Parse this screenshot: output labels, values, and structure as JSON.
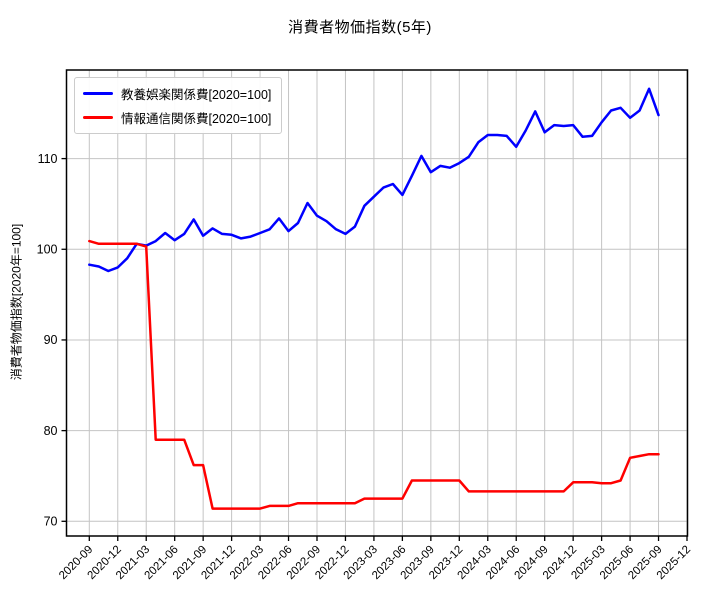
{
  "page": {
    "title": "消費者物価指数(5年)"
  },
  "chart_data": {
    "type": "line",
    "title": "消費者物価指数(5年)",
    "xlabel": "",
    "ylabel": "消費者物価指数[2020年=100]",
    "grid": true,
    "legend_position": "upper-left",
    "y_ticks": [
      70,
      80,
      90,
      100,
      110
    ],
    "ylim": [
      68.4,
      119.8
    ],
    "x_tick_labels": [
      "2020-09",
      "2020-12",
      "2021-03",
      "2021-06",
      "2021-09",
      "2021-12",
      "2022-03",
      "2022-06",
      "2022-09",
      "2022-12",
      "2023-03",
      "2023-06",
      "2023-09",
      "2023-12",
      "2024-03",
      "2024-06",
      "2024-09",
      "2024-12",
      "2025-03",
      "2025-06",
      "2025-09",
      "2025-12"
    ],
    "x": [
      "2020-09",
      "2020-10",
      "2020-11",
      "2020-12",
      "2021-01",
      "2021-02",
      "2021-03",
      "2021-04",
      "2021-05",
      "2021-06",
      "2021-07",
      "2021-08",
      "2021-09",
      "2021-10",
      "2021-11",
      "2021-12",
      "2022-01",
      "2022-02",
      "2022-03",
      "2022-04",
      "2022-05",
      "2022-06",
      "2022-07",
      "2022-08",
      "2022-09",
      "2022-10",
      "2022-11",
      "2022-12",
      "2023-01",
      "2023-02",
      "2023-03",
      "2023-04",
      "2023-05",
      "2023-06",
      "2023-07",
      "2023-08",
      "2023-09",
      "2023-10",
      "2023-11",
      "2023-12",
      "2024-01",
      "2024-02",
      "2024-03",
      "2024-04",
      "2024-05",
      "2024-06",
      "2024-07",
      "2024-08",
      "2024-09",
      "2024-10",
      "2024-11",
      "2024-12",
      "2025-01",
      "2025-02",
      "2025-03",
      "2025-04",
      "2025-05",
      "2025-06",
      "2025-07",
      "2025-08",
      "2025-09"
    ],
    "series": [
      {
        "name": "教養娯楽関係費[2020=100]",
        "color": "#0000ff",
        "values": [
          98.3,
          98.1,
          97.6,
          98.0,
          99.0,
          100.6,
          100.4,
          100.9,
          101.8,
          101.0,
          101.7,
          103.3,
          101.5,
          102.3,
          101.7,
          101.6,
          101.2,
          101.4,
          101.8,
          102.2,
          103.4,
          102.0,
          102.9,
          105.1,
          103.7,
          103.1,
          102.2,
          101.7,
          102.5,
          104.8,
          105.8,
          106.8,
          107.2,
          106.0,
          108.1,
          110.3,
          108.5,
          109.2,
          109.0,
          109.5,
          110.2,
          111.8,
          112.6,
          112.6,
          112.5,
          111.3,
          113.1,
          115.2,
          112.9,
          113.7,
          113.6,
          113.7,
          112.4,
          112.5,
          114.0,
          115.3,
          115.6,
          114.5,
          115.3,
          117.7,
          114.8
        ]
      },
      {
        "name": "情報通信関係費[2020=100]",
        "color": "#ff0000",
        "values": [
          100.9,
          100.6,
          100.6,
          100.6,
          100.6,
          100.6,
          100.3,
          79.0,
          79.0,
          79.0,
          79.0,
          76.2,
          76.2,
          71.4,
          71.4,
          71.4,
          71.4,
          71.4,
          71.4,
          71.7,
          71.7,
          71.7,
          72.0,
          72.0,
          72.0,
          72.0,
          72.0,
          72.0,
          72.0,
          72.5,
          72.5,
          72.5,
          72.5,
          72.5,
          74.5,
          74.5,
          74.5,
          74.5,
          74.5,
          74.5,
          73.3,
          73.3,
          73.3,
          73.3,
          73.3,
          73.3,
          73.3,
          73.3,
          73.3,
          73.3,
          73.3,
          74.3,
          74.3,
          74.3,
          74.2,
          74.2,
          74.5,
          77.0,
          77.2,
          77.4,
          77.4
        ]
      }
    ],
    "colors": {
      "grid": "#c4c4c4",
      "axis": "#000000",
      "background": "#ffffff"
    }
  }
}
